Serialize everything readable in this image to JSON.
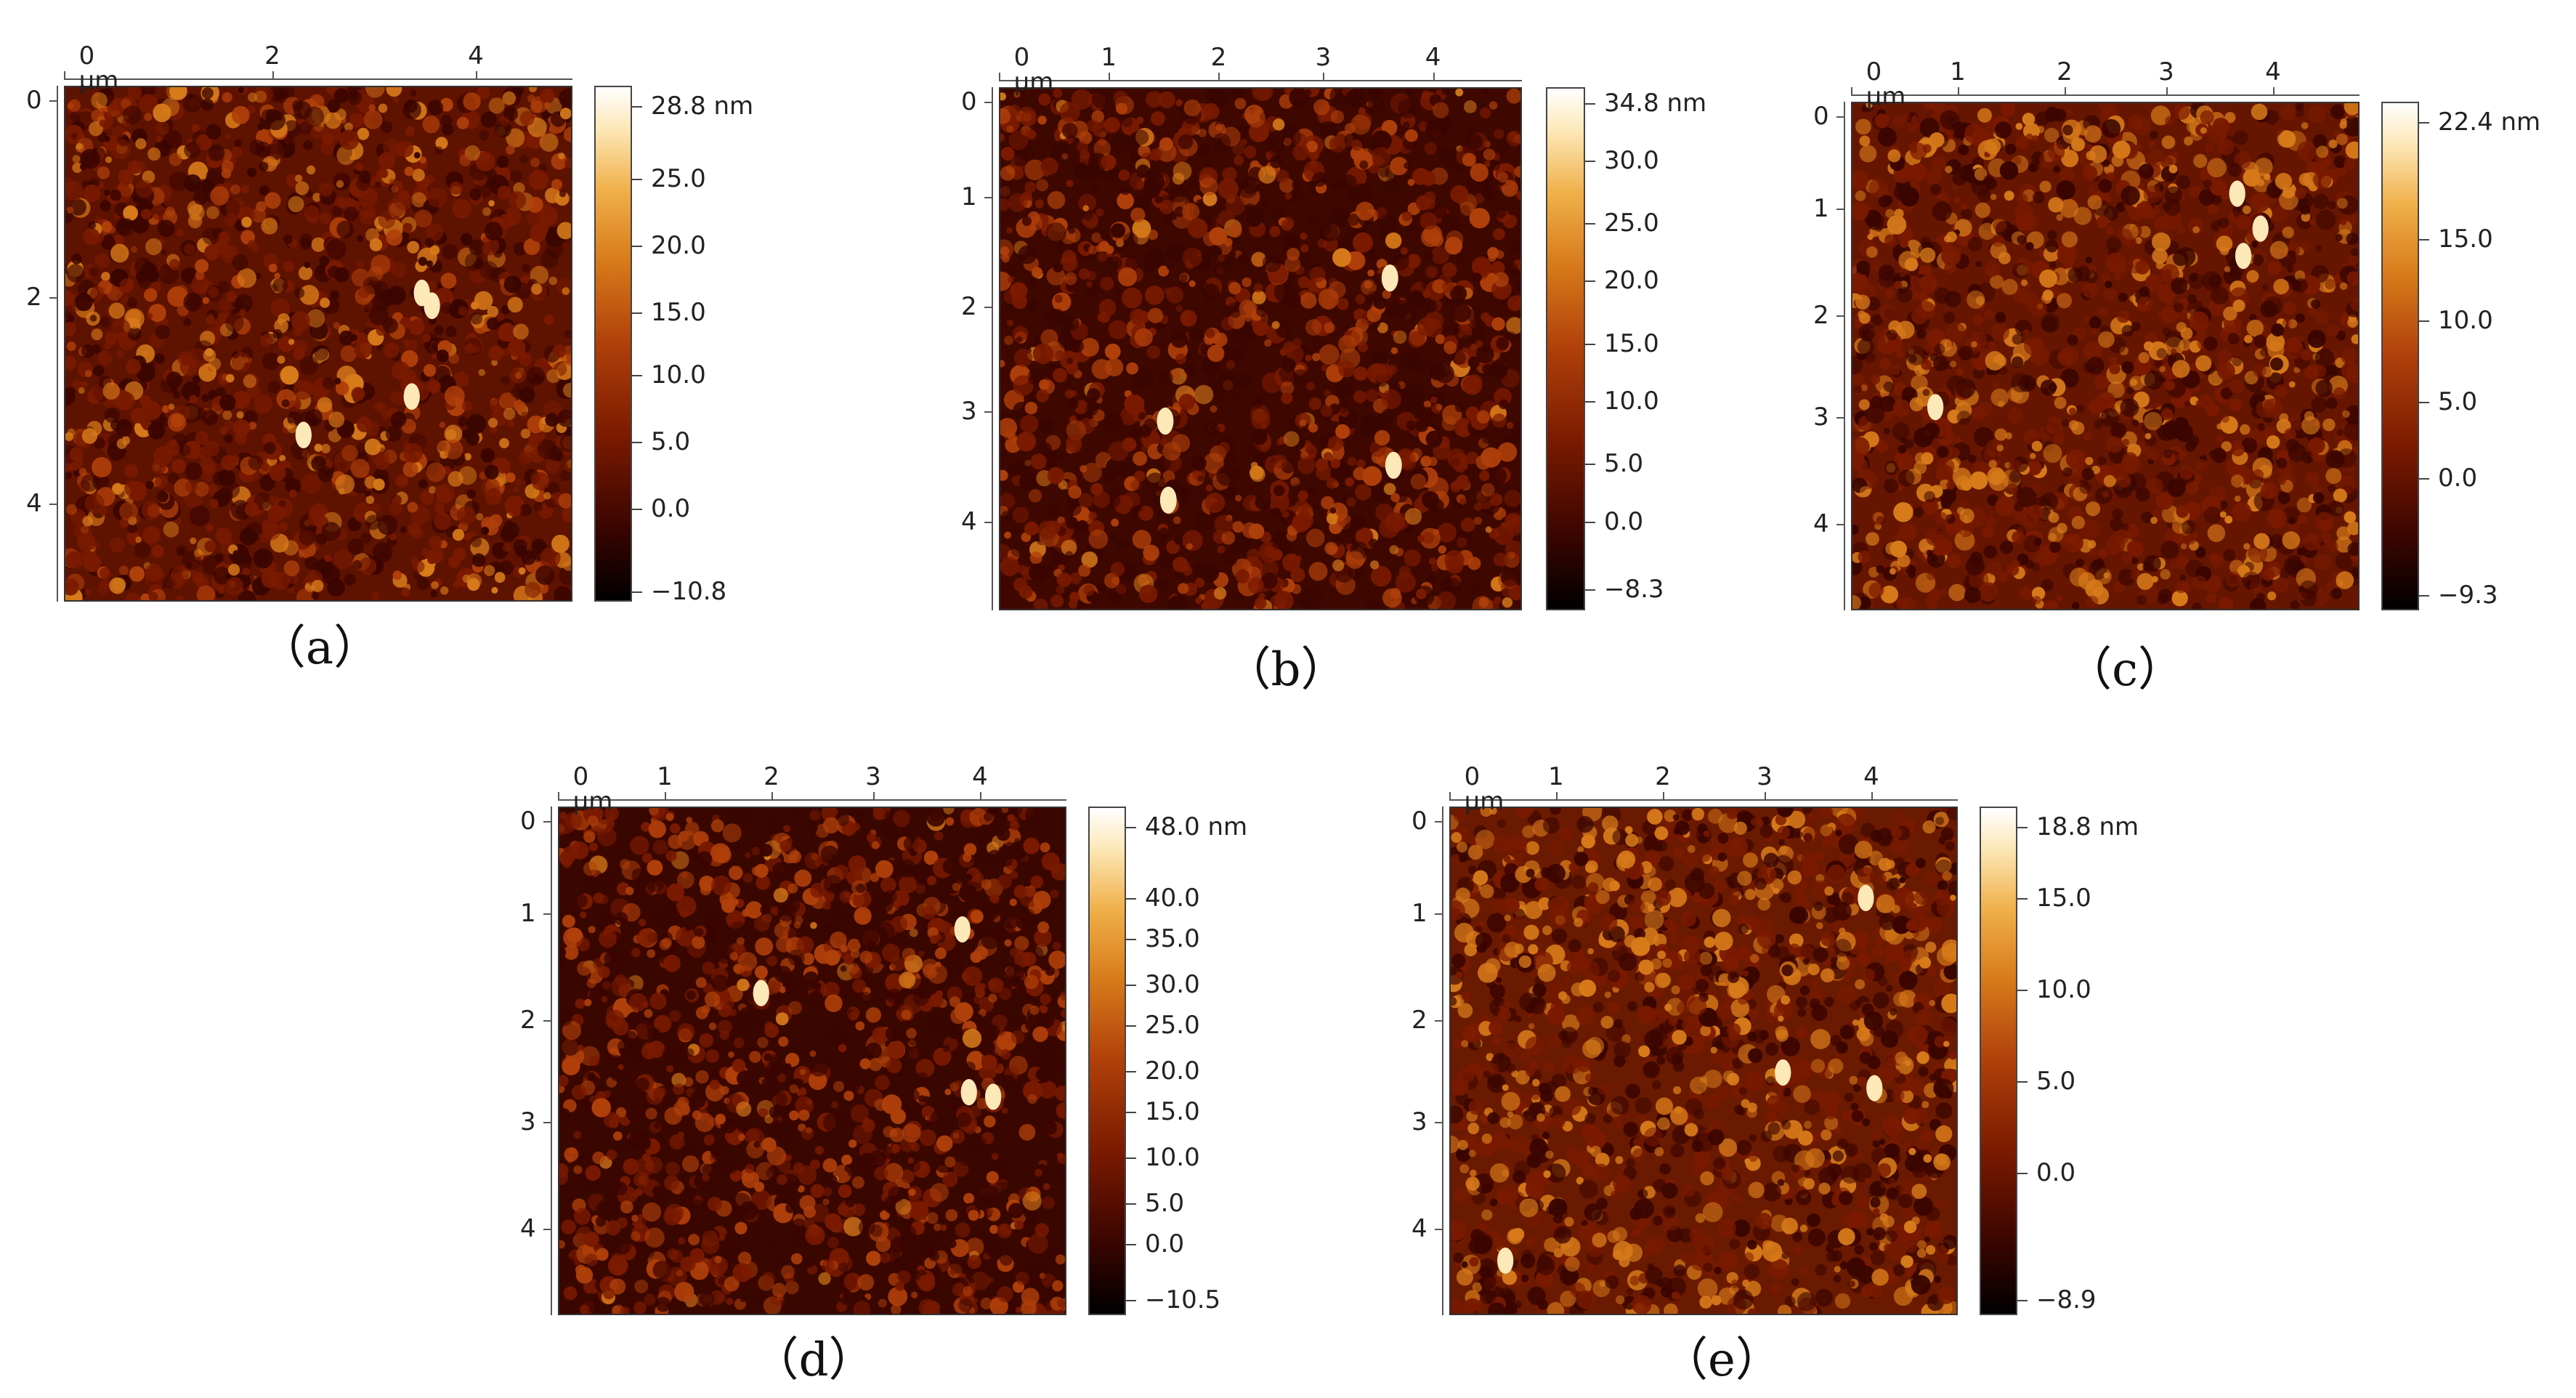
{
  "axis_unit": "µm",
  "panels": [
    {
      "id": "a",
      "caption": "（a）",
      "x_ticks": [
        "0 µm",
        "2",
        "4"
      ],
      "y_ticks": [
        "0",
        "2",
        "4"
      ],
      "colorbar_labels": [
        "28.8 nm",
        "25.0",
        "20.0",
        "15.0",
        "10.0",
        "5.0",
        "0.0",
        "−10.8"
      ]
    },
    {
      "id": "b",
      "caption": "（b）",
      "x_ticks": [
        "0 µm",
        "1",
        "2",
        "3",
        "4"
      ],
      "y_ticks": [
        "0",
        "1",
        "2",
        "3",
        "4"
      ],
      "colorbar_labels": [
        "34.8 nm",
        "30.0",
        "25.0",
        "20.0",
        "15.0",
        "10.0",
        "5.0",
        "0.0",
        "−8.3"
      ]
    },
    {
      "id": "c",
      "caption": "（c）",
      "x_ticks": [
        "0 µm",
        "1",
        "2",
        "3",
        "4"
      ],
      "y_ticks": [
        "0",
        "1",
        "2",
        "3",
        "4"
      ],
      "colorbar_labels": [
        "22.4 nm",
        "15.0",
        "10.0",
        "5.0",
        "0.0",
        "−9.3"
      ]
    },
    {
      "id": "d",
      "caption": "（d）",
      "x_ticks": [
        "0 µm",
        "1",
        "2",
        "3",
        "4"
      ],
      "y_ticks": [
        "0",
        "1",
        "2",
        "3",
        "4"
      ],
      "colorbar_labels": [
        "48.0 nm",
        "40.0",
        "35.0",
        "30.0",
        "25.0",
        "20.0",
        "15.0",
        "10.0",
        "5.0",
        "0.0",
        "−10.5"
      ]
    },
    {
      "id": "e",
      "caption": "（e）",
      "x_ticks": [
        "0 µm",
        "1",
        "2",
        "3",
        "4"
      ],
      "y_ticks": [
        "0",
        "1",
        "2",
        "3",
        "4"
      ],
      "colorbar_labels": [
        "18.8 nm",
        "15.0",
        "10.0",
        "5.0",
        "0.0",
        "−8.9"
      ]
    }
  ],
  "colors": {
    "colormap": [
      "#000000",
      "#3a0500",
      "#7a1a00",
      "#b0400a",
      "#d77a1a",
      "#f0b04a",
      "#fde8b8",
      "#ffffff"
    ]
  }
}
